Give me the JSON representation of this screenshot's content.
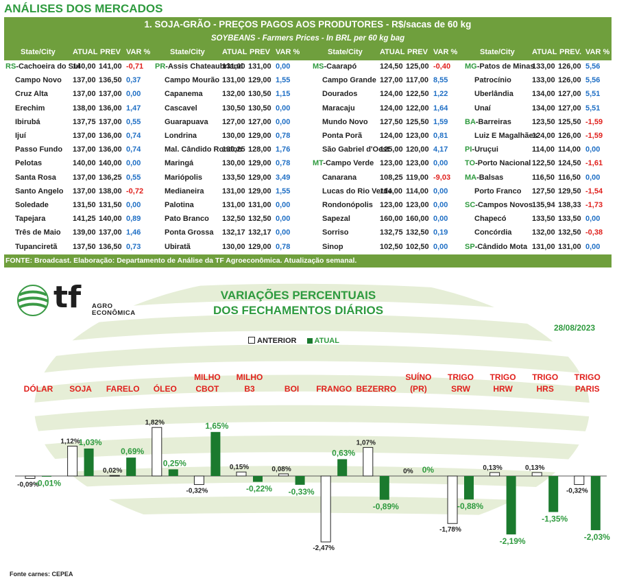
{
  "page": {
    "title": "ANÁLISES DOS MERCADOS"
  },
  "table": {
    "title": "1. SOJA-GRÃO - PREÇOS PAGOS AOS PRODUTORES - R$/sacas de 60 kg",
    "subtitle": "SOYBEANS - Farmers Prices - In BRL per 60 kg bag",
    "groups": [
      {
        "headers": [
          "State/City",
          "ATUAL",
          "PREV",
          "VAR %"
        ]
      },
      {
        "headers": [
          "State/City",
          "ATUAL",
          "PREV",
          "VAR %"
        ]
      },
      {
        "headers": [
          "State/City",
          "ATUAL",
          "PREV",
          "VAR %"
        ]
      },
      {
        "headers": [
          "State/City",
          "ATUAL",
          "PREV.",
          "VAR %"
        ]
      }
    ],
    "rows": [
      [
        {
          "st": "RS",
          "city": "-Cachoeira do Sul",
          "a": "140,00",
          "p": "141,00",
          "v": "-0,71"
        },
        {
          "st": "PR",
          "city": "-Assis Chateaubriand",
          "a": "131,00",
          "p": "131,00",
          "v": "0,00"
        },
        {
          "st": "MS",
          "city": "-Caarapó",
          "a": "124,50",
          "p": "125,00",
          "v": "-0,40"
        },
        {
          "st": "MG",
          "city": "-Patos de Minas",
          "a": "133,00",
          "p": "126,00",
          "v": "5,56"
        }
      ],
      [
        {
          "st": "",
          "city": "Campo Novo",
          "a": "137,00",
          "p": "136,50",
          "v": "0,37"
        },
        {
          "st": "",
          "city": "Campo Mourão",
          "a": "131,00",
          "p": "129,00",
          "v": "1,55"
        },
        {
          "st": "",
          "city": "Campo Grande",
          "a": "127,00",
          "p": "117,00",
          "v": "8,55"
        },
        {
          "st": "",
          "city": "Patrocínio",
          "a": "133,00",
          "p": "126,00",
          "v": "5,56"
        }
      ],
      [
        {
          "st": "",
          "city": "Cruz Alta",
          "a": "137,00",
          "p": "137,00",
          "v": "0,00"
        },
        {
          "st": "",
          "city": "Capanema",
          "a": "132,00",
          "p": "130,50",
          "v": "1,15"
        },
        {
          "st": "",
          "city": "Dourados",
          "a": "124,00",
          "p": "122,50",
          "v": "1,22"
        },
        {
          "st": "",
          "city": "Uberlândia",
          "a": "134,00",
          "p": "127,00",
          "v": "5,51"
        }
      ],
      [
        {
          "st": "",
          "city": "Erechim",
          "a": "138,00",
          "p": "136,00",
          "v": "1,47"
        },
        {
          "st": "",
          "city": "Cascavel",
          "a": "130,50",
          "p": "130,50",
          "v": "0,00"
        },
        {
          "st": "",
          "city": "Maracaju",
          "a": "124,00",
          "p": "122,00",
          "v": "1,64"
        },
        {
          "st": "",
          "city": "Unaí",
          "a": "134,00",
          "p": "127,00",
          "v": "5,51"
        }
      ],
      [
        {
          "st": "",
          "city": "Ibirubá",
          "a": "137,75",
          "p": "137,00",
          "v": "0,55"
        },
        {
          "st": "",
          "city": "Guarapuava",
          "a": "127,00",
          "p": "127,00",
          "v": "0,00"
        },
        {
          "st": "",
          "city": "Mundo Novo",
          "a": "127,50",
          "p": "125,50",
          "v": "1,59"
        },
        {
          "st": "BA",
          "city": "-Barreiras",
          "a": "123,50",
          "p": "125,50",
          "v": "-1,59"
        }
      ],
      [
        {
          "st": "",
          "city": "Ijuí",
          "a": "137,00",
          "p": "136,00",
          "v": "0,74"
        },
        {
          "st": "",
          "city": "Londrina",
          "a": "130,00",
          "p": "129,00",
          "v": "0,78"
        },
        {
          "st": "",
          "city": "Ponta Porã",
          "a": "124,00",
          "p": "123,00",
          "v": "0,81"
        },
        {
          "st": "",
          "city": "Luiz E Magalhães",
          "a": "124,00",
          "p": "126,00",
          "v": "-1,59"
        }
      ],
      [
        {
          "st": "",
          "city": "Passo Fundo",
          "a": "137,00",
          "p": "136,00",
          "v": "0,74"
        },
        {
          "st": "",
          "city": "Mal. Cândido Rondon",
          "a": "130,25",
          "p": "128,00",
          "v": "1,76"
        },
        {
          "st": "",
          "city": "São Gabriel d'Oest",
          "a": "125,00",
          "p": "120,00",
          "v": "4,17"
        },
        {
          "st": "PI",
          "city": "-Uruçui",
          "a": "114,00",
          "p": "114,00",
          "v": "0,00"
        }
      ],
      [
        {
          "st": "",
          "city": "Pelotas",
          "a": "140,00",
          "p": "140,00",
          "v": "0,00"
        },
        {
          "st": "",
          "city": "Maringá",
          "a": "130,00",
          "p": "129,00",
          "v": "0,78"
        },
        {
          "st": "MT",
          "city": "-Campo Verde",
          "a": "123,00",
          "p": "123,00",
          "v": "0,00"
        },
        {
          "st": "TO",
          "city": "-Porto Nacional",
          "a": "122,50",
          "p": "124,50",
          "v": "-1,61"
        }
      ],
      [
        {
          "st": "",
          "city": "Santa Rosa",
          "a": "137,00",
          "p": "136,25",
          "v": "0,55"
        },
        {
          "st": "",
          "city": "Mariópolis",
          "a": "133,50",
          "p": "129,00",
          "v": "3,49"
        },
        {
          "st": "",
          "city": "Canarana",
          "a": "108,25",
          "p": "119,00",
          "v": "-9,03"
        },
        {
          "st": "MA",
          "city": "-Balsas",
          "a": "116,50",
          "p": "116,50",
          "v": "0,00"
        }
      ],
      [
        {
          "st": "",
          "city": "Santo Angelo",
          "a": "137,00",
          "p": "138,00",
          "v": "-0,72"
        },
        {
          "st": "",
          "city": "Medianeira",
          "a": "131,00",
          "p": "129,00",
          "v": "1,55"
        },
        {
          "st": "",
          "city": "Lucas do Rio Verde",
          "a": "114,00",
          "p": "114,00",
          "v": "0,00"
        },
        {
          "st": "",
          "city": "Porto Franco",
          "a": "127,50",
          "p": "129,50",
          "v": "-1,54"
        }
      ],
      [
        {
          "st": "",
          "city": "Soledade",
          "a": "131,50",
          "p": "131,50",
          "v": "0,00"
        },
        {
          "st": "",
          "city": "Palotina",
          "a": "131,00",
          "p": "131,00",
          "v": "0,00"
        },
        {
          "st": "",
          "city": "Rondonópolis",
          "a": "123,00",
          "p": "123,00",
          "v": "0,00"
        },
        {
          "st": "SC",
          "city": "-Campos Novos",
          "a": "135,94",
          "p": "138,33",
          "v": "-1,73"
        }
      ],
      [
        {
          "st": "",
          "city": "Tapejara",
          "a": "141,25",
          "p": "140,00",
          "v": "0,89"
        },
        {
          "st": "",
          "city": "Pato Branco",
          "a": "132,50",
          "p": "132,50",
          "v": "0,00"
        },
        {
          "st": "",
          "city": "Sapezal",
          "a": "160,00",
          "p": "160,00",
          "v": "0,00"
        },
        {
          "st": "",
          "city": "Chapecó",
          "a": "133,50",
          "p": "133,50",
          "v": "0,00"
        }
      ],
      [
        {
          "st": "",
          "city": "Três de Maio",
          "a": "139,00",
          "p": "137,00",
          "v": "1,46"
        },
        {
          "st": "",
          "city": "Ponta Grossa",
          "a": "132,17",
          "p": "132,17",
          "v": "0,00"
        },
        {
          "st": "",
          "city": "Sorriso",
          "a": "132,75",
          "p": "132,50",
          "v": "0,19"
        },
        {
          "st": "",
          "city": "Concórdia",
          "a": "132,00",
          "p": "132,50",
          "v": "-0,38"
        }
      ],
      [
        {
          "st": "",
          "city": "Tupanciretã",
          "a": "137,50",
          "p": "136,50",
          "v": "0,73"
        },
        {
          "st": "",
          "city": "Ubiratã",
          "a": "130,00",
          "p": "129,00",
          "v": "0,78"
        },
        {
          "st": "",
          "city": "Sinop",
          "a": "102,50",
          "p": "102,50",
          "v": "0,00"
        },
        {
          "st": "SP",
          "city": "-Cândido Mota",
          "a": "131,00",
          "p": "131,00",
          "v": "0,00"
        }
      ]
    ],
    "footer": "FONTE: Broadcast. Elaboração: Departamento de Análise da TF Agroeconômica. Atualização semanal."
  },
  "logo": {
    "mark": "tf",
    "line1": "AGRO",
    "line2": "ECONÔMICA"
  },
  "colors": {
    "green_header": "#6f9f3d",
    "title_green": "#2e9a3e",
    "bar_current": "#1b7a2e",
    "label_red": "#e0201c"
  },
  "chart_data": {
    "type": "bar",
    "title_line1": "VARIAÇÕES PERCENTUAIS",
    "title_line2": "DOS FECHAMENTOS DIÁRIOS",
    "date": "28/08/2023",
    "categories": [
      [
        "DÓLAR"
      ],
      [
        "SOJA"
      ],
      [
        "FARELO"
      ],
      [
        "ÓLEO"
      ],
      [
        "MILHO",
        "CBOT"
      ],
      [
        "MILHO",
        "B3"
      ],
      [
        "BOI"
      ],
      [
        "FRANGO"
      ],
      [
        "BEZERRO"
      ],
      [
        "SUÍNO",
        "(PR)"
      ],
      [
        "TRIGO",
        "SRW"
      ],
      [
        "TRIGO",
        "HRW"
      ],
      [
        "TRIGO",
        "HRS"
      ],
      [
        "TRIGO",
        "PARIS"
      ]
    ],
    "series": [
      {
        "name": "ANTERIOR",
        "values": [
          -0.09,
          1.12,
          0.02,
          1.82,
          -0.32,
          0.15,
          0.08,
          -2.47,
          1.07,
          0,
          -1.78,
          0.13,
          0.13,
          -0.32
        ],
        "labels": [
          "-0,09%",
          "1,12%",
          "0,02%",
          "1,82%",
          "-0,32%",
          "0,15%",
          "0,08%",
          "-2,47%",
          "1,07%",
          "0%",
          "-1,78%",
          "0,13%",
          "0,13%",
          "-0,32%"
        ]
      },
      {
        "name": "ATUAL",
        "values": [
          -0.01,
          1.03,
          0.69,
          0.25,
          1.65,
          -0.22,
          -0.33,
          0.63,
          -0.89,
          0,
          -0.88,
          -2.19,
          -1.35,
          -2.03
        ],
        "labels": [
          "-0,01%",
          "1,03%",
          "0,69%",
          "0,25%",
          "1,65%",
          "-0,22%",
          "-0,33%",
          "0,63%",
          "-0,89%",
          "0%",
          "-0,88%",
          "-2,19%",
          "-1,35%",
          "-2,03%"
        ]
      }
    ],
    "legend": "top-center",
    "source_note": "Fonte carnes: CEPEA"
  }
}
